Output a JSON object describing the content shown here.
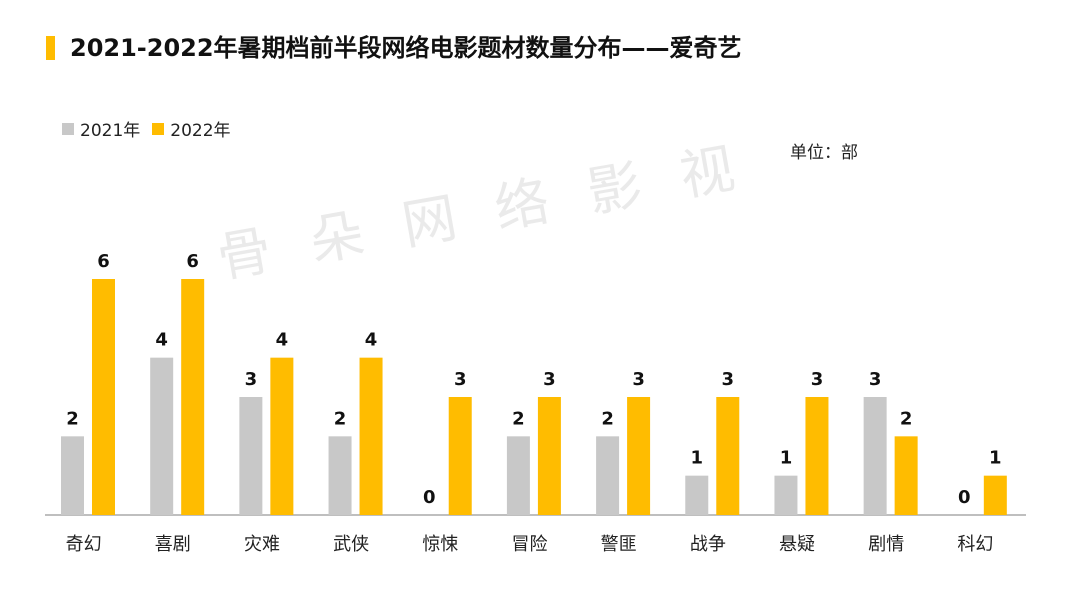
{
  "title": "2021-2022年暑期档前半段网络电影题材数量分布——爱奇艺",
  "unit": "单位：部",
  "watermark": "骨朵网络影视",
  "colors": {
    "accent": "#FFBC00",
    "series_2021": "#C8C8C8",
    "series_2022": "#FFBC00",
    "axis": "#7F7F7F"
  },
  "chart_data": {
    "type": "bar",
    "title": "2021-2022年暑期档前半段网络电影题材数量分布——爱奇艺",
    "xlabel": "",
    "ylabel": "",
    "ylim": [
      0,
      6
    ],
    "grid": false,
    "legend": "top-left",
    "categories": [
      "奇幻",
      "喜剧",
      "灾难",
      "武侠",
      "惊悚",
      "冒险",
      "警匪",
      "战争",
      "悬疑",
      "剧情",
      "科幻"
    ],
    "series": [
      {
        "name": "2021年",
        "values": [
          2,
          4,
          3,
          2,
          0,
          2,
          2,
          1,
          1,
          3,
          0
        ]
      },
      {
        "name": "2022年",
        "values": [
          6,
          6,
          4,
          4,
          3,
          3,
          3,
          3,
          3,
          2,
          1
        ]
      }
    ]
  }
}
